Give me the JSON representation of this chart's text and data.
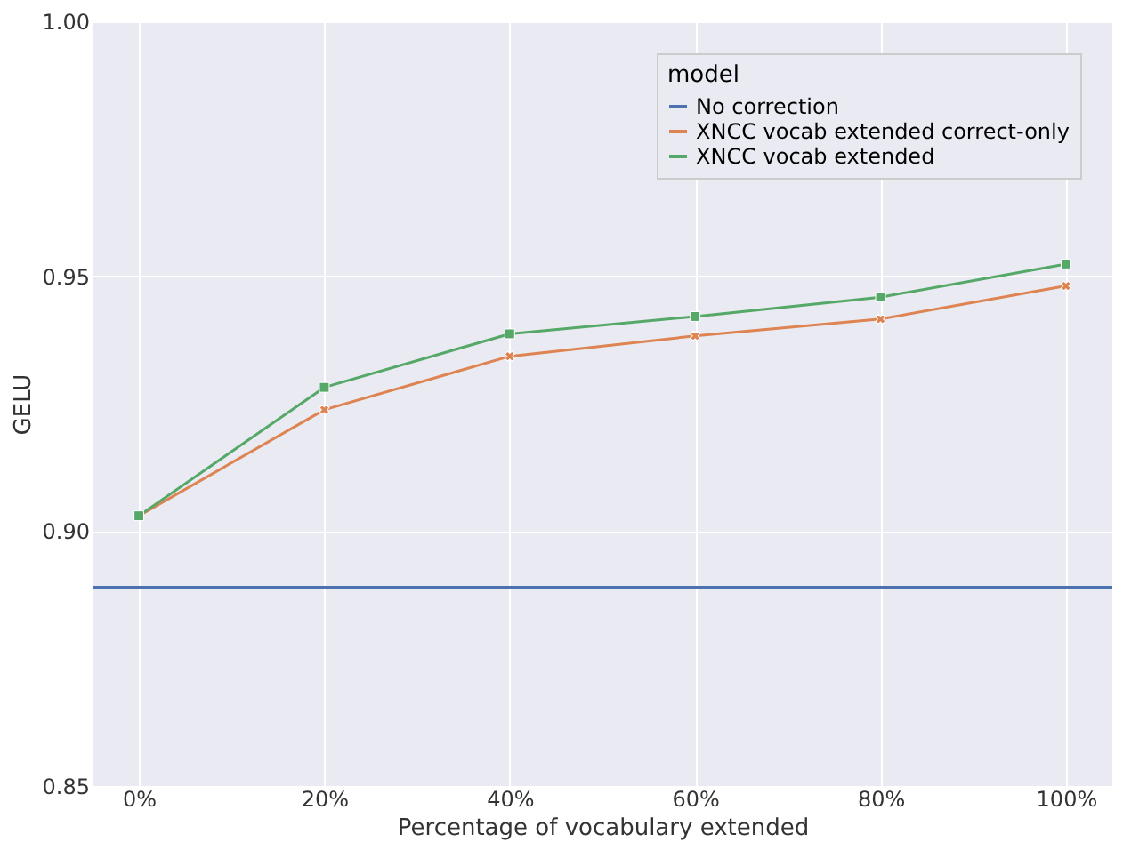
{
  "chart_data": {
    "type": "line",
    "xlabel": "Percentage of vocabulary extended",
    "ylabel": "GELU",
    "legend_title": "model",
    "legend": "top right",
    "grid": true,
    "line_style": "solid",
    "xlim": [
      -5,
      105
    ],
    "xticks": [
      {
        "value": 0,
        "label": "0%"
      },
      {
        "value": 20,
        "label": "20%"
      },
      {
        "value": 40,
        "label": "40%"
      },
      {
        "value": 60,
        "label": "60%"
      },
      {
        "value": 80,
        "label": "80%"
      },
      {
        "value": 100,
        "label": "100%"
      }
    ],
    "ylim": [
      0.85,
      1.0
    ],
    "yticks": [
      {
        "value": 0.85,
        "label": "0.85"
      },
      {
        "value": 0.9,
        "label": "0.90"
      },
      {
        "value": 0.95,
        "label": "0.95"
      },
      {
        "value": 1.0,
        "label": "1.00"
      }
    ],
    "series": [
      {
        "name": "No correction",
        "color": "#4c72b0",
        "marker": "none",
        "x": [
          -5,
          105
        ],
        "values": [
          0.889,
          0.889
        ]
      },
      {
        "name": "XNCC vocab extended correct-only",
        "color": "#dd8452",
        "marker": "cross",
        "x": [
          0,
          20,
          40,
          60,
          80,
          100
        ],
        "values": [
          0.903,
          0.9238,
          0.9343,
          0.9383,
          0.9416,
          0.9481
        ]
      },
      {
        "name": "XNCC vocab extended",
        "color": "#55a868",
        "marker": "square",
        "x": [
          0,
          20,
          40,
          60,
          80,
          100
        ],
        "values": [
          0.903,
          0.9282,
          0.9387,
          0.9421,
          0.9459,
          0.9524
        ]
      }
    ]
  }
}
